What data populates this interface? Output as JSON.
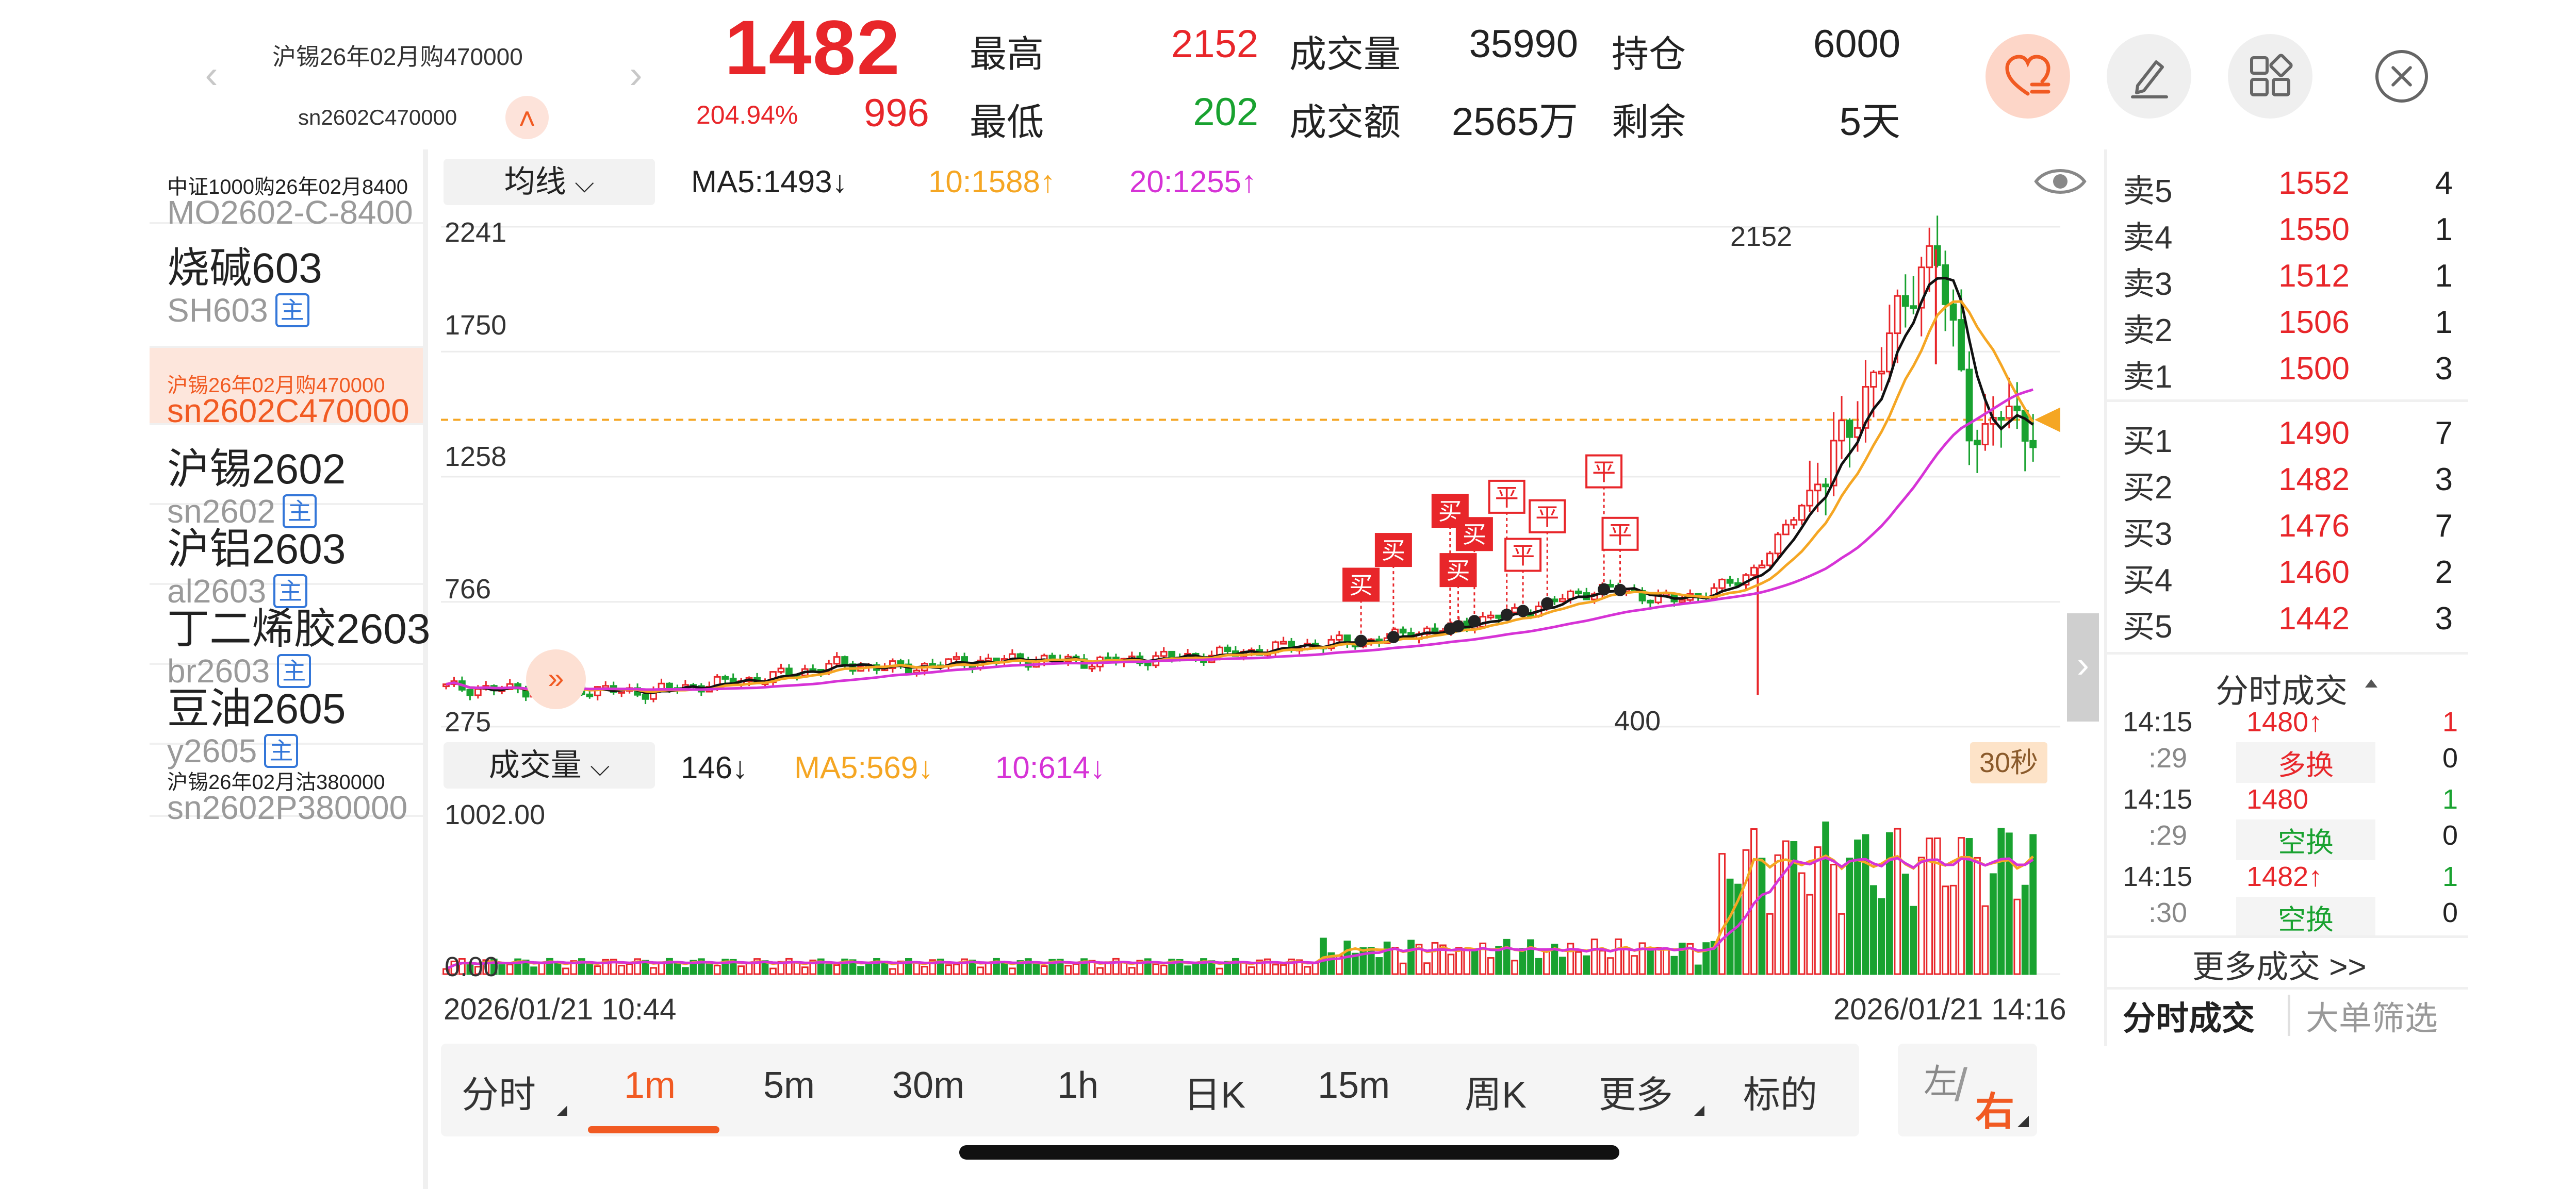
{
  "header": {
    "instrument_name": "沪锡26年02月购470000",
    "instrument_code": "sn2602C470000",
    "last_price": "1482",
    "change_pct": "204.94%",
    "change": "996",
    "high_label": "最高",
    "high_value": "2152",
    "low_label": "最低",
    "low_value": "202",
    "volume_label": "成交量",
    "volume_value": "35990",
    "turnover_label": "成交额",
    "turnover_value": "2565万",
    "oi_label": "持仓",
    "oi_value": "6000",
    "remain_label": "剩余",
    "remain_value": "5天",
    "buttons": [
      "heart-list-icon",
      "edit-icon",
      "grid-icon",
      "close-icon"
    ]
  },
  "sidebar": {
    "items": [
      {
        "name": "中证1000购26年02月8400",
        "code": "MO2602-C-8400",
        "main": false,
        "small": true,
        "active": false
      },
      {
        "name": "烧碱603",
        "code": "SH603",
        "main": true,
        "small": false,
        "active": false
      },
      {
        "name": "沪锡26年02月购470000",
        "code": "sn2602C470000",
        "main": false,
        "small": true,
        "active": true
      },
      {
        "name": "沪锡2602",
        "code": "sn2602",
        "main": true,
        "small": false,
        "active": false
      },
      {
        "name": "沪铝2603",
        "code": "al2603",
        "main": true,
        "small": false,
        "active": false
      },
      {
        "name": "丁二烯胶2603",
        "code": "br2603",
        "main": true,
        "small": false,
        "active": false
      },
      {
        "name": "豆油2605",
        "code": "y2605",
        "main": true,
        "small": false,
        "active": false
      },
      {
        "name": "沪锡26年02月沽380000",
        "code": "sn2602P380000",
        "main": false,
        "small": true,
        "active": false
      }
    ],
    "main_tag": "主"
  },
  "chart": {
    "ma_dropdown": "均线",
    "ma5": "MA5:1493↓",
    "ma10": "10:1588↑",
    "ma20": "20:1255↑",
    "vol_dropdown": "成交量",
    "vol_value": "146↓",
    "vol_ma5": "MA5:569↓",
    "vol_ma10": "10:614↓",
    "price_axis": [
      "2241",
      "1750",
      "1258",
      "766",
      "275"
    ],
    "vol_axis": [
      "1002.00",
      "0.00"
    ],
    "high_marker": "2152",
    "low_marker": "400",
    "start_time": "2026/01/21 10:44",
    "end_time": "2026/01/21 14:16",
    "period_badge": "30秒",
    "trade_markers": [
      "买",
      "买",
      "买",
      "买",
      "买",
      "平",
      "平",
      "平",
      "平",
      "平"
    ],
    "colors": {
      "up": "#e8262a",
      "down": "#19a230",
      "ma5": "#111111",
      "ma10": "#f5a623",
      "ma20": "#d633d6",
      "last_line": "#f5a623"
    }
  },
  "chart_data": {
    "type": "candlestick",
    "xlabel": "",
    "ylabel": "",
    "ylim": [
      275,
      2241
    ],
    "x_range": [
      "2026/01/21 10:44",
      "2026/01/21 14:16"
    ],
    "high": 2152,
    "low": 400,
    "last": 1482,
    "ma": {
      "MA5": 1493,
      "MA10": 1588,
      "MA20": 1255
    },
    "volume": {
      "ylim": [
        0,
        1002
      ],
      "last": 146,
      "MA5": 569,
      "MA10": 614
    },
    "price_path": [
      [
        0.0,
        430
      ],
      [
        0.04,
        420
      ],
      [
        0.08,
        425
      ],
      [
        0.12,
        410
      ],
      [
        0.16,
        440
      ],
      [
        0.2,
        470
      ],
      [
        0.24,
        520
      ],
      [
        0.28,
        505
      ],
      [
        0.32,
        530
      ],
      [
        0.36,
        540
      ],
      [
        0.4,
        530
      ],
      [
        0.44,
        545
      ],
      [
        0.48,
        560
      ],
      [
        0.5,
        575
      ],
      [
        0.52,
        590
      ],
      [
        0.54,
        600
      ],
      [
        0.56,
        610
      ],
      [
        0.58,
        620
      ],
      [
        0.6,
        650
      ],
      [
        0.62,
        660
      ],
      [
        0.64,
        700
      ],
      [
        0.66,
        720
      ],
      [
        0.68,
        760
      ],
      [
        0.7,
        800
      ],
      [
        0.72,
        820
      ],
      [
        0.74,
        790
      ],
      [
        0.76,
        770
      ],
      [
        0.78,
        810
      ],
      [
        0.8,
        850
      ],
      [
        0.82,
        980
      ],
      [
        0.84,
        1180
      ],
      [
        0.86,
        1350
      ],
      [
        0.88,
        1650
      ],
      [
        0.9,
        1900
      ],
      [
        0.91,
        2100
      ],
      [
        0.92,
        2152
      ],
      [
        0.93,
        1800
      ],
      [
        0.94,
        1500
      ],
      [
        0.95,
        1420
      ],
      [
        0.96,
        1520
      ],
      [
        0.97,
        1440
      ],
      [
        0.98,
        1482
      ]
    ]
  },
  "orderbook": {
    "asks": [
      {
        "label": "卖5",
        "price": "1552",
        "qty": "4"
      },
      {
        "label": "卖4",
        "price": "1550",
        "qty": "1"
      },
      {
        "label": "卖3",
        "price": "1512",
        "qty": "1"
      },
      {
        "label": "卖2",
        "price": "1506",
        "qty": "1"
      },
      {
        "label": "卖1",
        "price": "1500",
        "qty": "3"
      }
    ],
    "bids": [
      {
        "label": "买1",
        "price": "1490",
        "qty": "7"
      },
      {
        "label": "买2",
        "price": "1482",
        "qty": "3"
      },
      {
        "label": "买3",
        "price": "1476",
        "qty": "7"
      },
      {
        "label": "买4",
        "price": "1460",
        "qty": "2"
      },
      {
        "label": "买5",
        "price": "1442",
        "qty": "3"
      }
    ],
    "trades_title": "分时成交",
    "trades": [
      {
        "time": "14:15",
        "sec": ":29",
        "price": "1480↑",
        "price_color": "#e8262a",
        "qty": "1",
        "qty_color": "#e8262a",
        "type": "多换",
        "type_color": "#e8262a",
        "zero": "0"
      },
      {
        "time": "14:15",
        "sec": ":29",
        "price": "1480",
        "price_color": "#e8262a",
        "qty": "1",
        "qty_color": "#19a230",
        "type": "空换",
        "type_color": "#19a230",
        "zero": "0"
      },
      {
        "time": "14:15",
        "sec": ":30",
        "price": "1482↑",
        "price_color": "#e8262a",
        "qty": "1",
        "qty_color": "#19a230",
        "type": "空换",
        "type_color": "#19a230",
        "zero": "0"
      }
    ],
    "more_trades": "更多成交 >>",
    "tab_time_trades": "分时成交",
    "tab_big_filter": "大单筛选"
  },
  "tabs": {
    "items": [
      "分时",
      "1m",
      "5m",
      "30m",
      "1h",
      "日K",
      "15m",
      "周K",
      "更多",
      "标的"
    ],
    "active": "1m",
    "left_label": "左",
    "right_label": "右"
  }
}
